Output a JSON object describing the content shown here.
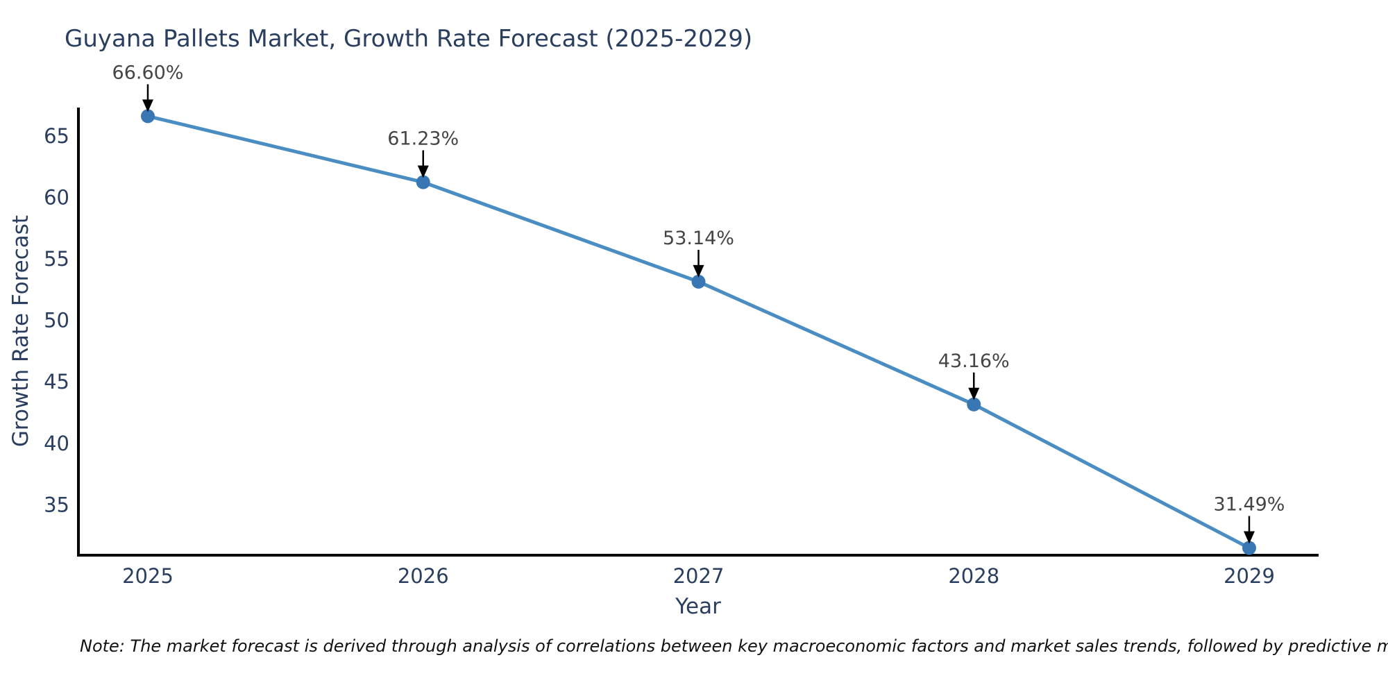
{
  "note": "Note: The market forecast is derived through analysis of correlations between key macroeconomic factors and market sales trends, followed by predictive modeling to project future sales.",
  "colors": {
    "line": "#4a8dc3",
    "marker": "#3876b4",
    "axis": "#000000",
    "tick_text": "#2a3f5f",
    "annotation_text": "#444444",
    "arrow": "#000000",
    "title_text": "#2a3f5f",
    "background": "#ffffff"
  },
  "chart_data": {
    "type": "line",
    "title": "Guyana Pallets Market, Growth Rate Forecast (2025-2029)",
    "categories": [
      "2025",
      "2026",
      "2027",
      "2028",
      "2029"
    ],
    "values": [
      66.6,
      61.23,
      53.14,
      43.16,
      31.49
    ],
    "point_labels": [
      "66.60%",
      "61.23%",
      "53.14%",
      "43.16%",
      "31.49%"
    ],
    "xlabel": "Year",
    "ylabel": "Growth Rate Forecast",
    "yticks": [
      65,
      60,
      55,
      50,
      45,
      40,
      35
    ],
    "ylim": [
      30.9,
      67.3
    ],
    "grid": false,
    "legend": "none",
    "marker": "circle",
    "line_shape": "linear",
    "annotations": "value labels above each point with downward black arrows"
  }
}
